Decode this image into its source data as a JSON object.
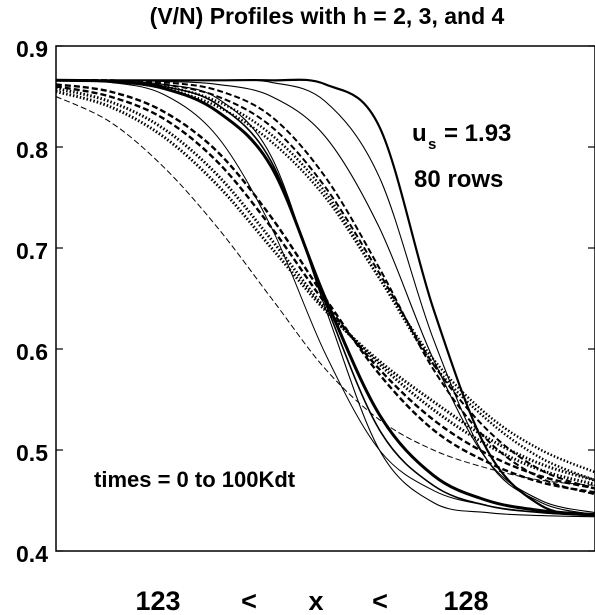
{
  "chart_data": {
    "type": "line",
    "title": "(V/N) Profiles with h = 2, 3, and 4",
    "xlabel_parts": [
      "123",
      "<",
      "x",
      "<",
      "128"
    ],
    "ylabel": "",
    "xlim": [
      123,
      128
    ],
    "ylim": [
      0.4,
      0.9
    ],
    "yticks": [
      "0.9",
      "0.8",
      "0.7",
      "0.6",
      "0.5",
      "0.4"
    ],
    "annotations": {
      "us_label": "u",
      "us_sub": "s",
      "us_value": "= 1.93",
      "rows": "80 rows",
      "times": "times = 0 to 100Kdt"
    },
    "grid": false,
    "legend": "none",
    "stroke_color": "#000000",
    "series": [
      {
        "style": "solid",
        "width": 1.1,
        "x": [
          123,
          123.5,
          124,
          124.5,
          125,
          125.5,
          126,
          126.5,
          127,
          127.5,
          128
        ],
        "y": [
          0.866,
          0.865,
          0.862,
          0.848,
          0.79,
          0.64,
          0.5,
          0.448,
          0.438,
          0.435,
          0.434
        ]
      },
      {
        "style": "solid",
        "width": 1.6,
        "x": [
          123,
          123.5,
          124,
          124.5,
          125,
          125.5,
          126,
          126.5,
          127,
          127.5,
          128
        ],
        "y": [
          0.866,
          0.865,
          0.86,
          0.842,
          0.785,
          0.645,
          0.52,
          0.465,
          0.445,
          0.438,
          0.435
        ]
      },
      {
        "style": "solid",
        "width": 3.0,
        "x": [
          123,
          123.5,
          124,
          124.5,
          125,
          125.5,
          126,
          126.5,
          127,
          127.5,
          128
        ],
        "y": [
          0.866,
          0.865,
          0.858,
          0.835,
          0.78,
          0.65,
          0.535,
          0.475,
          0.45,
          0.44,
          0.436
        ]
      },
      {
        "style": "solid",
        "width": 1.0,
        "x": [
          123,
          123.5,
          124,
          124.5,
          125,
          125.5,
          126,
          126.5,
          127,
          127.5,
          128
        ],
        "y": [
          0.866,
          0.864,
          0.852,
          0.81,
          0.72,
          0.595,
          0.5,
          0.46,
          0.445,
          0.438,
          0.435
        ]
      },
      {
        "style": "solid",
        "width": 2.2,
        "x": [
          123,
          123.5,
          124,
          124.5,
          125,
          125.5,
          126,
          126.5,
          127,
          127.5,
          128
        ],
        "y": [
          0.866,
          0.866,
          0.866,
          0.866,
          0.866,
          0.862,
          0.82,
          0.64,
          0.5,
          0.445,
          0.435
        ]
      },
      {
        "style": "solid",
        "width": 1.1,
        "x": [
          123,
          123.5,
          124,
          124.5,
          125,
          125.5,
          126,
          126.5,
          127,
          127.5,
          128
        ],
        "y": [
          0.866,
          0.866,
          0.866,
          0.866,
          0.864,
          0.845,
          0.77,
          0.61,
          0.49,
          0.448,
          0.436
        ]
      },
      {
        "style": "solid",
        "width": 1.1,
        "x": [
          123,
          123.5,
          124,
          124.5,
          125,
          125.5,
          126,
          126.5,
          127,
          127.5,
          128
        ],
        "y": [
          0.866,
          0.866,
          0.865,
          0.862,
          0.85,
          0.81,
          0.72,
          0.59,
          0.49,
          0.45,
          0.438
        ]
      },
      {
        "style": "dashed",
        "width": 2.0,
        "x": [
          123,
          123.5,
          124,
          124.5,
          125,
          125.5,
          126,
          126.5,
          127,
          127.5,
          128
        ],
        "y": [
          0.866,
          0.866,
          0.864,
          0.856,
          0.83,
          0.77,
          0.68,
          0.58,
          0.51,
          0.472,
          0.456
        ]
      },
      {
        "style": "dashed",
        "width": 2.0,
        "x": [
          123,
          123.5,
          124,
          124.5,
          125,
          125.5,
          126,
          126.5,
          127,
          127.5,
          128
        ],
        "y": [
          0.866,
          0.866,
          0.862,
          0.85,
          0.82,
          0.76,
          0.675,
          0.585,
          0.52,
          0.48,
          0.462
        ]
      },
      {
        "style": "dotted",
        "width": 2.5,
        "x": [
          123,
          123.5,
          124,
          124.5,
          125,
          125.5,
          126,
          126.5,
          127,
          127.5,
          128
        ],
        "y": [
          0.866,
          0.865,
          0.86,
          0.845,
          0.812,
          0.755,
          0.67,
          0.585,
          0.53,
          0.492,
          0.47
        ]
      },
      {
        "style": "dotted",
        "width": 2.5,
        "x": [
          123,
          123.5,
          124,
          124.5,
          125,
          125.5,
          126,
          126.5,
          127,
          127.5,
          128
        ],
        "y": [
          0.866,
          0.865,
          0.858,
          0.84,
          0.805,
          0.75,
          0.67,
          0.59,
          0.535,
          0.5,
          0.478
        ]
      },
      {
        "style": "dashed",
        "width": 2.4,
        "x": [
          123,
          123.5,
          124,
          124.5,
          125,
          125.5,
          126,
          126.5,
          127,
          127.5,
          128
        ],
        "y": [
          0.862,
          0.855,
          0.835,
          0.795,
          0.73,
          0.65,
          0.575,
          0.52,
          0.488,
          0.468,
          0.458
        ]
      },
      {
        "style": "dashed",
        "width": 2.4,
        "x": [
          123,
          123.5,
          124,
          124.5,
          125,
          125.5,
          126,
          126.5,
          127,
          127.5,
          128
        ],
        "y": [
          0.86,
          0.85,
          0.828,
          0.785,
          0.72,
          0.645,
          0.58,
          0.53,
          0.496,
          0.474,
          0.462
        ]
      },
      {
        "style": "dotted",
        "width": 3.0,
        "x": [
          123,
          123.5,
          124,
          124.5,
          125,
          125.5,
          126,
          126.5,
          127,
          127.5,
          128
        ],
        "y": [
          0.858,
          0.845,
          0.818,
          0.772,
          0.708,
          0.64,
          0.585,
          0.54,
          0.505,
          0.48,
          0.466
        ]
      },
      {
        "style": "dotted",
        "width": 3.0,
        "x": [
          123,
          123.5,
          124,
          124.5,
          125,
          125.5,
          126,
          126.5,
          127,
          127.5,
          128
        ],
        "y": [
          0.855,
          0.84,
          0.81,
          0.762,
          0.7,
          0.638,
          0.588,
          0.548,
          0.512,
          0.486,
          0.47
        ]
      },
      {
        "style": "dashed",
        "width": 1.0,
        "x": [
          123,
          123.5,
          124,
          124.5,
          125,
          125.5,
          126,
          126.5,
          127,
          127.5,
          128
        ],
        "y": [
          0.85,
          0.825,
          0.78,
          0.72,
          0.65,
          0.58,
          0.53,
          0.5,
          0.482,
          0.47,
          0.465
        ]
      }
    ]
  }
}
